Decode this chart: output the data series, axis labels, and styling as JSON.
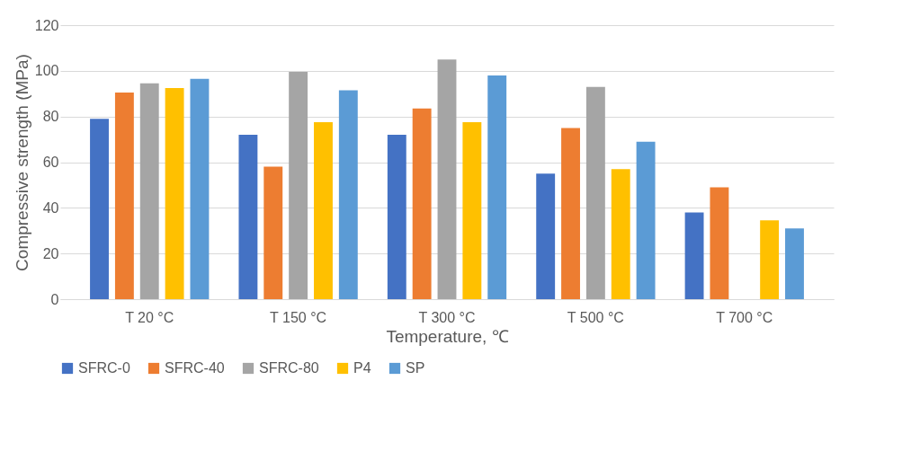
{
  "chart_data": {
    "type": "bar",
    "xlabel": "Temperature, ℃",
    "ylabel": "Compressive strength (MPa)",
    "categories": [
      "T 20 °C",
      "T 150 °C",
      "T 300 °C",
      "T 500 °C",
      "T 700 °C"
    ],
    "series": [
      {
        "name": "SFRC-0",
        "color": "#4472c4",
        "values": [
          79,
          72,
          72,
          55,
          38
        ]
      },
      {
        "name": "SFRC-40",
        "color": "#ed7d31",
        "values": [
          90.5,
          58,
          83.5,
          75,
          49
        ]
      },
      {
        "name": "SFRC-80",
        "color": "#a5a5a5",
        "values": [
          94.5,
          99.5,
          105,
          93,
          null
        ]
      },
      {
        "name": "P4",
        "color": "#ffc000",
        "values": [
          92.5,
          77.5,
          77.5,
          57,
          34.5
        ]
      },
      {
        "name": "SP",
        "color": "#5b9bd5",
        "values": [
          96.5,
          91.5,
          98,
          69,
          31
        ]
      }
    ],
    "ylim": [
      0,
      120
    ],
    "yticks": [
      0,
      20,
      40,
      60,
      80,
      100,
      120
    ],
    "grid": "y",
    "legend": "bottom"
  }
}
